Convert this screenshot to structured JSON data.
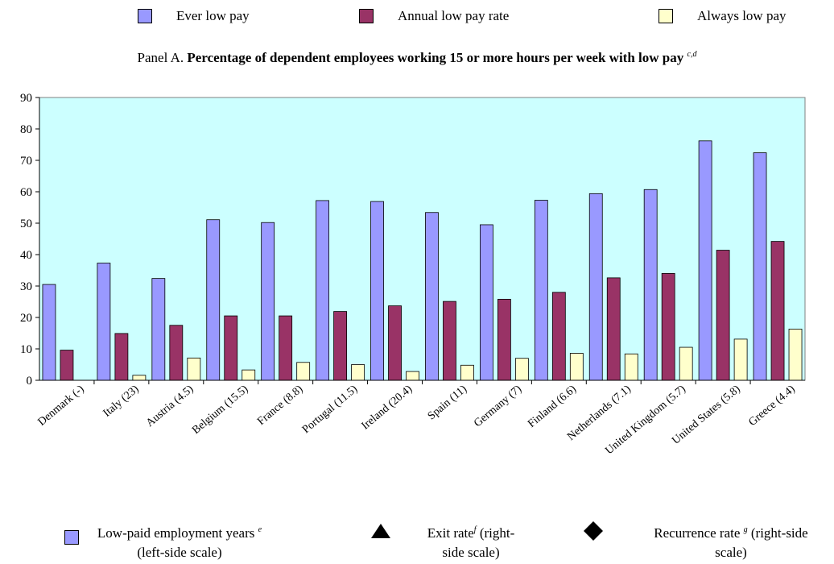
{
  "legend_top": {
    "ever_low_pay": "Ever low pay",
    "annual_low_pay_rate": "Annual low pay rate",
    "always_low_pay": "Always low pay"
  },
  "panel": {
    "prefix": "Panel A.",
    "title": "Percentage of dependent employees working 15 or more hours per week with low pay",
    "note": "c,d"
  },
  "legend_bottom": {
    "years_label": "Low-paid employment years",
    "years_note": "e",
    "years_scale": "(left-side scale)",
    "exit_label": "Exit rate",
    "exit_note": "f",
    "exit_scale_1": "(right-",
    "exit_scale_2": "side scale)",
    "recurrence_label": "Recurrence rate",
    "recurrence_note": "g",
    "recurrence_scale_1": "(right-side",
    "recurrence_scale_2": "scale)"
  },
  "colors": {
    "ever": "#9999ff",
    "annual": "#993366",
    "always": "#ffffcc",
    "plot_bg": "#ccffff"
  },
  "chart_data": {
    "type": "bar",
    "categories": [
      "Denmark (-)",
      "Italy (23)",
      "Austria (4.5)",
      "Belgium (15.5)",
      "France (8.8)",
      "Portugal (11.5)",
      "Ireland (20.4)",
      "Spain (11)",
      "Germany (7)",
      "Finland (6.6)",
      "Netherlands (7.1)",
      "United Kingdom (5.7)",
      "United States (5.8)",
      "Greece (4.4)"
    ],
    "series": [
      {
        "name": "Ever low pay",
        "values": [
          30.5,
          37.3,
          32.4,
          51.1,
          50.2,
          57.2,
          56.9,
          53.4,
          49.5,
          57.3,
          59.4,
          60.7,
          76.2,
          72.4
        ]
      },
      {
        "name": "Annual low pay rate",
        "values": [
          9.6,
          14.9,
          17.5,
          20.5,
          20.5,
          21.9,
          23.7,
          25.1,
          25.8,
          28.0,
          32.6,
          34.0,
          41.4,
          44.2
        ]
      },
      {
        "name": "Always low pay",
        "values": [
          0,
          1.6,
          7.1,
          3.3,
          5.7,
          5.0,
          2.8,
          4.8,
          7.0,
          8.6,
          8.4,
          10.5,
          13.1,
          16.3
        ]
      }
    ],
    "ylim": [
      0,
      90
    ],
    "yticks": [
      0,
      10,
      20,
      30,
      40,
      50,
      60,
      70,
      80,
      90
    ],
    "grid": false,
    "legend_position": "top"
  }
}
